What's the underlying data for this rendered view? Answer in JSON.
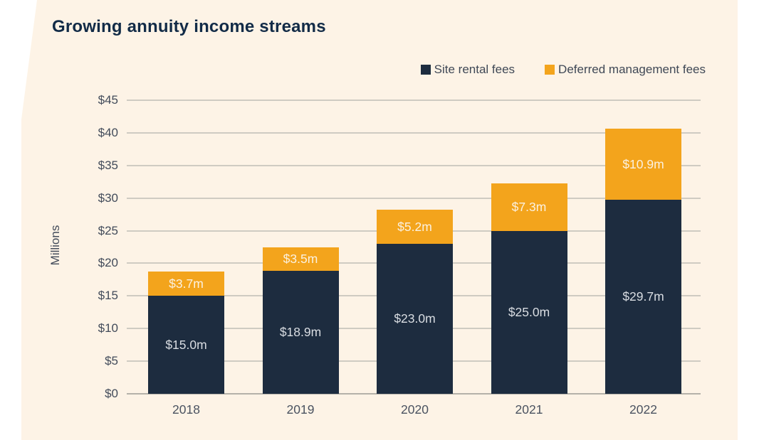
{
  "title": "Growing annuity income streams",
  "colors": {
    "page_background": "#ffffff",
    "panel_background": "#fdf3e6",
    "title_text": "#122b47",
    "axis_text": "#424b5a",
    "x_axis_text": "#4a5260",
    "legend_text": "#3f4856",
    "gridline": "#cfcbc2",
    "baseline": "#b5b1a9",
    "series_site_rental": "#1d2c3f",
    "series_deferred": "#f3a41c",
    "label_on_navy": "#d9dde2",
    "label_on_orange": "#fbf1e0"
  },
  "chart_data": {
    "type": "bar",
    "stacked": true,
    "title": "Growing annuity income streams",
    "categories": [
      "2018",
      "2019",
      "2020",
      "2021",
      "2022"
    ],
    "series": [
      {
        "name": "Site rental fees",
        "color": "#1d2c3f",
        "label_color": "#d9dde2",
        "values": [
          15.0,
          18.9,
          23.0,
          25.0,
          29.7
        ],
        "labels": [
          "$15.0m",
          "$18.9m",
          "$23.0m",
          "$25.0m",
          "$29.7m"
        ]
      },
      {
        "name": "Deferred management fees",
        "color": "#f3a41c",
        "label_color": "#fbf1e0",
        "values": [
          3.7,
          3.5,
          5.2,
          7.3,
          10.9
        ],
        "labels": [
          "$3.7m",
          "$3.5m",
          "$5.2m",
          "$7.3m",
          "$10.9m"
        ]
      }
    ],
    "xlabel": "",
    "ylabel": "Millions",
    "ylim": [
      0,
      45
    ],
    "ytick_step": 5,
    "ytick_labels": [
      "$0",
      "$5",
      "$10",
      "$15",
      "$20",
      "$25",
      "$30",
      "$35",
      "$40",
      "$45"
    ],
    "grid": true,
    "legend_position": "top-right"
  }
}
